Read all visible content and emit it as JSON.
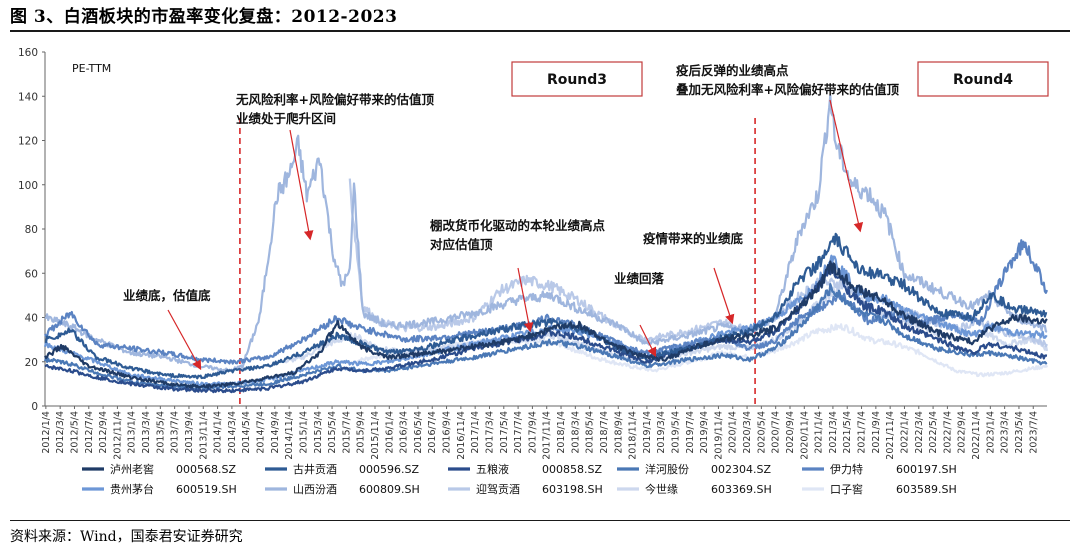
{
  "figure": {
    "title": "图 3、白酒板块的市盈率变化复盘：2012-2023",
    "source": "资料来源：Wind，国泰君安证券研究"
  },
  "chart_data": {
    "type": "line",
    "title": "图 3、白酒板块的市盈率变化复盘：2012-2023",
    "ylabel": "PE-TTM",
    "ylim": [
      0,
      160
    ],
    "yticks": [
      0,
      20,
      40,
      60,
      80,
      100,
      120,
      140,
      160
    ],
    "grid": false,
    "legend_position": "bottom",
    "x_start": "2012/1/4",
    "x_end": "2023/8/31",
    "x_labels": [
      "2012/1/4",
      "2012/3/4",
      "2012/5/4",
      "2012/7/4",
      "2012/9/4",
      "2012/11/4",
      "2013/1/4",
      "2013/3/4",
      "2013/5/4",
      "2013/7/4",
      "2013/9/4",
      "2013/11/4",
      "2014/1/4",
      "2014/3/4",
      "2014/5/4",
      "2014/7/4",
      "2014/9/4",
      "2014/11/4",
      "2015/1/4",
      "2015/3/4",
      "2015/5/4",
      "2015/7/4",
      "2015/9/4",
      "2015/11/4",
      "2016/1/4",
      "2016/3/4",
      "2016/5/4",
      "2016/7/4",
      "2016/9/4",
      "2016/11/4",
      "2017/1/4",
      "2017/3/4",
      "2017/5/4",
      "2017/7/4",
      "2017/9/4",
      "2017/11/4",
      "2018/1/4",
      "2018/3/4",
      "2018/5/4",
      "2018/7/4",
      "2018/9/4",
      "2018/11/4",
      "2019/1/4",
      "2019/3/4",
      "2019/5/4",
      "2019/7/4",
      "2019/9/4",
      "2019/11/4",
      "2020/1/4",
      "2020/3/4",
      "2020/5/4",
      "2020/7/4",
      "2020/9/4",
      "2020/11/4",
      "2021/1/4",
      "2021/3/4",
      "2021/5/4",
      "2021/7/4",
      "2021/9/4",
      "2021/11/4",
      "2022/1/4",
      "2022/3/4",
      "2022/5/4",
      "2022/7/4",
      "2022/9/4",
      "2022/11/4",
      "2023/1/4",
      "2023/3/4",
      "2023/5/4",
      "2023/7/4"
    ],
    "series": [
      {
        "name": "泸州老窖",
        "code": "000568.SZ",
        "color": "#1f3b66",
        "x": [
          2012.0,
          2012.2,
          2012.5,
          2012.8,
          2013.0,
          2013.3,
          2013.6,
          2013.9,
          2014.2,
          2014.5,
          2014.9,
          2015.2,
          2015.4,
          2015.7,
          2016.0,
          2016.5,
          2017.0,
          2017.5,
          2017.9,
          2018.2,
          2018.5,
          2018.9,
          2019.2,
          2019.6,
          2019.9,
          2020.2,
          2020.5,
          2020.8,
          2021.0,
          2021.15,
          2021.5,
          2021.8,
          2022.0,
          2022.4,
          2022.8,
          2023.0,
          2023.3,
          2023.67
        ],
        "values": [
          22,
          27,
          18,
          15,
          13,
          11,
          9,
          9,
          10,
          12,
          15,
          24,
          38,
          26,
          22,
          24,
          27,
          30,
          35,
          37,
          30,
          23,
          21,
          27,
          30,
          32,
          35,
          45,
          53,
          63,
          52,
          47,
          41,
          33,
          29,
          35,
          40,
          38
        ]
      },
      {
        "name": "古井贡酒",
        "code": "000596.SZ",
        "color": "#2e5b94",
        "x": [
          2012.0,
          2012.3,
          2012.6,
          2013.0,
          2013.4,
          2013.8,
          2014.2,
          2014.6,
          2015.0,
          2015.4,
          2015.7,
          2016.0,
          2016.5,
          2017.0,
          2017.5,
          2017.9,
          2018.3,
          2018.7,
          2019.0,
          2019.5,
          2019.9,
          2020.2,
          2020.5,
          2020.8,
          2021.0,
          2021.2,
          2021.5,
          2021.8,
          2022.0,
          2022.4,
          2022.8,
          2023.0,
          2023.3,
          2023.67
        ],
        "values": [
          30,
          34,
          22,
          17,
          14,
          13,
          16,
          18,
          24,
          32,
          28,
          24,
          27,
          32,
          36,
          38,
          34,
          26,
          22,
          26,
          31,
          34,
          40,
          58,
          64,
          75,
          62,
          58,
          55,
          42,
          40,
          50,
          44,
          42
        ]
      },
      {
        "name": "五粮液",
        "code": "000858.SZ",
        "color": "#2b4c8c",
        "x": [
          2012.0,
          2012.3,
          2012.6,
          2013.0,
          2013.4,
          2013.8,
          2014.2,
          2014.6,
          2015.0,
          2015.4,
          2015.7,
          2016.0,
          2016.5,
          2017.0,
          2017.5,
          2017.9,
          2018.2,
          2018.7,
          2019.0,
          2019.5,
          2019.9,
          2020.2,
          2020.5,
          2020.8,
          2021.0,
          2021.15,
          2021.5,
          2021.8,
          2022.0,
          2022.4,
          2022.8,
          2023.0,
          2023.3,
          2023.67
        ],
        "values": [
          18,
          16,
          13,
          10,
          8,
          7,
          7,
          8,
          11,
          17,
          16,
          17,
          21,
          26,
          30,
          33,
          31,
          24,
          20,
          26,
          30,
          29,
          33,
          45,
          54,
          62,
          46,
          42,
          36,
          30,
          24,
          28,
          26,
          22
        ]
      },
      {
        "name": "洋河股份",
        "code": "002304.SZ",
        "color": "#4a78b5",
        "x": [
          2012.0,
          2012.3,
          2012.6,
          2013.0,
          2013.4,
          2013.8,
          2014.2,
          2014.6,
          2015.0,
          2015.4,
          2015.7,
          2016.0,
          2016.5,
          2017.0,
          2017.5,
          2017.9,
          2018.2,
          2018.7,
          2019.0,
          2019.5,
          2019.9,
          2020.2,
          2020.5,
          2020.8,
          2021.0,
          2021.15,
          2021.5,
          2021.8,
          2022.0,
          2022.4,
          2022.8,
          2023.0,
          2023.3,
          2023.67
        ],
        "values": [
          21,
          19,
          15,
          11,
          9,
          8,
          9,
          10,
          14,
          18,
          16,
          16,
          19,
          22,
          26,
          29,
          27,
          22,
          18,
          21,
          23,
          21,
          26,
          36,
          45,
          53,
          42,
          38,
          32,
          26,
          23,
          24,
          22,
          19
        ]
      },
      {
        "name": "伊力特",
        "code": "600197.SH",
        "color": "#5b83c2",
        "x": [
          2012.0,
          2012.3,
          2012.6,
          2013.0,
          2013.4,
          2013.8,
          2014.2,
          2014.6,
          2015.0,
          2015.4,
          2015.6,
          2015.9,
          2016.2,
          2016.6,
          2017.0,
          2017.5,
          2017.9,
          2018.2,
          2018.7,
          2019.0,
          2019.5,
          2019.9,
          2020.2,
          2020.5,
          2020.8,
          2021.0,
          2021.3,
          2021.6,
          2021.9,
          2022.2,
          2022.6,
          2022.9,
          2023.2,
          2023.4,
          2023.6,
          2023.67
        ],
        "values": [
          32,
          42,
          28,
          26,
          24,
          21,
          20,
          22,
          30,
          40,
          36,
          33,
          30,
          31,
          33,
          36,
          40,
          36,
          28,
          24,
          28,
          31,
          26,
          29,
          40,
          44,
          50,
          38,
          42,
          37,
          42,
          38,
          62,
          74,
          58,
          52
        ]
      },
      {
        "name": "贵州茅台",
        "code": "600519.SH",
        "color": "#6d97d6",
        "x": [
          2012.0,
          2012.3,
          2012.6,
          2013.0,
          2013.4,
          2013.8,
          2014.2,
          2014.6,
          2015.0,
          2015.4,
          2015.7,
          2016.0,
          2016.5,
          2017.0,
          2017.5,
          2017.9,
          2018.2,
          2018.7,
          2019.0,
          2019.5,
          2019.9,
          2020.2,
          2020.5,
          2020.8,
          2021.0,
          2021.15,
          2021.5,
          2021.8,
          2022.0,
          2022.4,
          2022.8,
          2023.0,
          2023.3,
          2023.67
        ],
        "values": [
          28,
          24,
          20,
          14,
          12,
          10,
          10,
          12,
          16,
          20,
          19,
          20,
          24,
          28,
          32,
          35,
          34,
          28,
          22,
          28,
          33,
          35,
          40,
          48,
          55,
          68,
          50,
          48,
          43,
          38,
          32,
          36,
          33,
          32
        ]
      },
      {
        "name": "山西汾酒",
        "code": "600809.SH",
        "color": "#9fb6de",
        "x": [
          2012.0,
          2012.3,
          2012.6,
          2013.0,
          2013.4,
          2013.8,
          2014.15,
          2014.3,
          2014.5,
          2014.7,
          2014.85,
          2014.95,
          2015.05,
          2015.2,
          2015.35,
          2015.45,
          2015.55,
          2015.6,
          2015.7,
          2016.0,
          2016.5,
          2017.0,
          2017.5,
          2017.9,
          2018.2,
          2018.7,
          2019.0,
          2019.5,
          2019.9,
          2020.2,
          2020.5,
          2020.8,
          2021.0,
          2021.15,
          2021.2,
          2021.4,
          2021.6,
          2021.8,
          2022.0,
          2022.4,
          2022.8,
          2023.0,
          2023.3,
          2023.67
        ],
        "values": [
          40,
          36,
          30,
          24,
          22,
          18,
          16,
          18,
          40,
          95,
          105,
          118,
          95,
          112,
          70,
          55,
          60,
          100,
          42,
          36,
          38,
          42,
          48,
          50,
          44,
          36,
          28,
          32,
          36,
          34,
          40,
          80,
          95,
          140,
          120,
          100,
          96,
          85,
          60,
          52,
          45,
          50,
          40,
          35
        ]
      },
      {
        "name": "迎驾贡酒",
        "code": "603198.SH",
        "color": "#b9c9e8",
        "x": [
          2015.55,
          2015.7,
          2015.9,
          2016.2,
          2016.6,
          2017.0,
          2017.3,
          2017.6,
          2017.9,
          2018.2,
          2018.7,
          2019.0,
          2019.5,
          2019.9,
          2020.2,
          2020.5,
          2020.8,
          2021.0,
          2021.3,
          2021.6,
          2021.9,
          2022.2,
          2022.6,
          2022.9,
          2023.2,
          2023.5,
          2023.67
        ],
        "values": [
          100,
          45,
          38,
          35,
          36,
          40,
          52,
          57,
          54,
          48,
          35,
          30,
          34,
          38,
          34,
          40,
          50,
          56,
          55,
          50,
          45,
          40,
          35,
          38,
          33,
          30,
          28
        ]
      },
      {
        "name": "今世缘",
        "code": "603369.SH",
        "color": "#cdd8ee",
        "x": [
          2014.8,
          2015.0,
          2015.3,
          2015.6,
          2015.9,
          2016.2,
          2016.6,
          2017.0,
          2017.5,
          2017.9,
          2018.2,
          2018.7,
          2019.0,
          2019.5,
          2019.9,
          2020.2,
          2020.5,
          2020.8,
          2021.0,
          2021.3,
          2021.6,
          2021.9,
          2022.2,
          2022.6,
          2022.9,
          2023.2,
          2023.5,
          2023.67
        ],
        "values": [
          20,
          22,
          28,
          32,
          26,
          24,
          26,
          28,
          30,
          32,
          28,
          22,
          20,
          24,
          27,
          26,
          30,
          38,
          46,
          56,
          44,
          40,
          36,
          30,
          34,
          28,
          30,
          26
        ]
      },
      {
        "name": "口子窖",
        "code": "603589.SH",
        "color": "#dfe6f5",
        "x": [
          2015.6,
          2015.8,
          2016.1,
          2016.5,
          2016.9,
          2017.3,
          2017.7,
          2018.0,
          2018.4,
          2018.8,
          2019.1,
          2019.5,
          2019.9,
          2020.2,
          2020.5,
          2020.8,
          2021.0,
          2021.3,
          2021.6,
          2021.9,
          2022.2,
          2022.6,
          2022.9,
          2023.2,
          2023.5,
          2023.67
        ],
        "values": [
          20,
          22,
          24,
          26,
          28,
          30,
          29,
          28,
          22,
          18,
          16,
          20,
          24,
          22,
          25,
          30,
          34,
          36,
          30,
          28,
          24,
          16,
          14,
          15,
          17,
          18
        ]
      }
    ],
    "annotations": [
      {
        "lines": [
          "业绩底，估值底"
        ]
      },
      {
        "lines": [
          "无风险利率+风险偏好带来的估值顶",
          "业绩处于爬升区间"
        ]
      },
      {
        "lines": [
          "棚改货币化驱动的本轮业绩高点",
          "对应估值顶"
        ]
      },
      {
        "lines": [
          "业绩回落"
        ]
      },
      {
        "lines": [
          "疫情带来的业绩底"
        ]
      },
      {
        "lines": [
          "疫后反弹的业绩高点",
          "叠加无风险利率+风险偏好带来的估值顶"
        ]
      }
    ],
    "round_labels": [
      "Round3",
      "Round4"
    ],
    "divider_dates": [
      2014.27,
      2020.27
    ]
  }
}
